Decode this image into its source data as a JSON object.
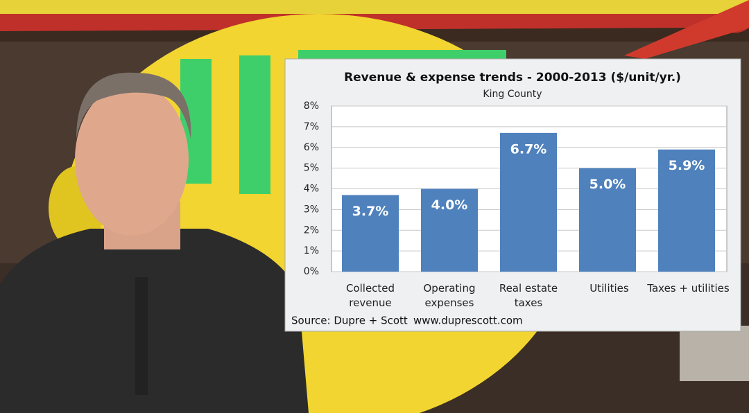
{
  "chart_data": {
    "type": "bar",
    "title": "Revenue & expense trends - 2000-2013 ($/unit/yr.)",
    "subtitle": "King County",
    "categories": [
      "Collected revenue",
      "Operating expenses",
      "Real estate taxes",
      "Utilities",
      "Taxes + utilities"
    ],
    "values": [
      3.7,
      4.0,
      6.7,
      5.0,
      5.9
    ],
    "value_labels": [
      "3.7%",
      "4.0%",
      "6.7%",
      "5.0%",
      "5.9%"
    ],
    "color": "#4f81bd",
    "ylim": [
      0,
      8
    ],
    "yticks": [
      {
        "value": 0,
        "label": "0%"
      },
      {
        "value": 1,
        "label": "1%"
      },
      {
        "value": 2,
        "label": "2%"
      },
      {
        "value": 3,
        "label": "3%"
      },
      {
        "value": 4,
        "label": "4%"
      },
      {
        "value": 5,
        "label": "5%"
      },
      {
        "value": 6,
        "label": "6%"
      },
      {
        "value": 7,
        "label": "7%"
      },
      {
        "value": 8,
        "label": "8%"
      }
    ],
    "grid": true,
    "annotations": [
      "Source: Dupre + Scott",
      "www.duprescott.com"
    ]
  }
}
